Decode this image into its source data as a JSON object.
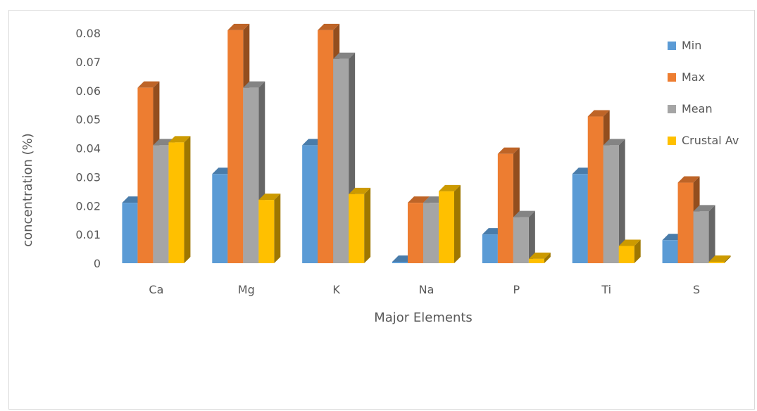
{
  "chart_data": {
    "type": "bar",
    "title": "",
    "xlabel": "Major Elements",
    "ylabel": "concentration (%)",
    "ylim": [
      0,
      0.08
    ],
    "yticks": [
      "0",
      "0.01",
      "0.02",
      "0.03",
      "0.04",
      "0.05",
      "0.06",
      "0.07",
      "0.08"
    ],
    "grid": false,
    "legend_position": "right",
    "categories": [
      "Ca",
      "Mg",
      "K",
      "Na",
      "P",
      "Ti",
      "S"
    ],
    "series": [
      {
        "name": "Min",
        "color": "#5b9bd5",
        "values": [
          0.021,
          0.031,
          0.041,
          0.0005,
          0.01,
          0.031,
          0.008
        ]
      },
      {
        "name": "Max",
        "color": "#ed7d31",
        "values": [
          0.061,
          0.081,
          0.081,
          0.021,
          0.038,
          0.051,
          0.028
        ]
      },
      {
        "name": "Mean",
        "color": "#a5a5a5",
        "values": [
          0.041,
          0.061,
          0.071,
          0.021,
          0.016,
          0.041,
          0.018
        ]
      },
      {
        "name": "Crustal Av",
        "color": "#ffc000",
        "values": [
          0.042,
          0.022,
          0.024,
          0.025,
          0.0015,
          0.006,
          0.0005
        ]
      }
    ]
  }
}
